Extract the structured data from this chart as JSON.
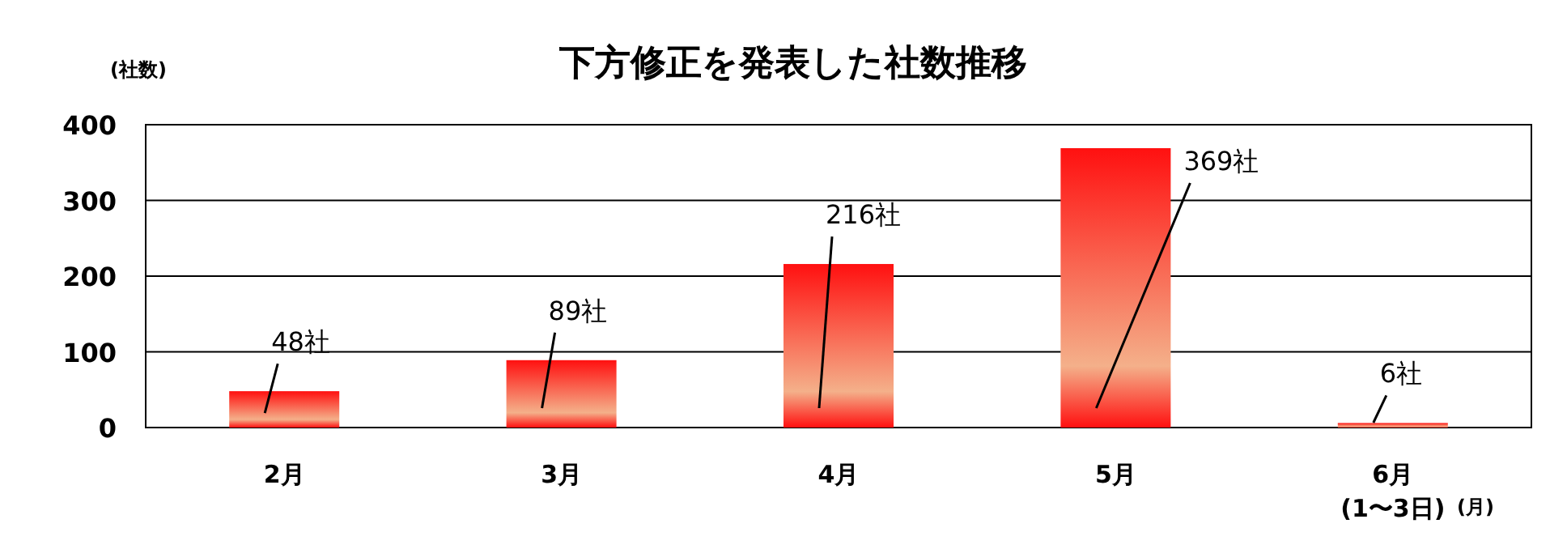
{
  "chart_data": {
    "type": "bar",
    "title": "下方修正を発表した社数推移",
    "ylabel": "(社数)",
    "xlabel": "(月)",
    "categories": [
      "2月",
      "3月",
      "4月",
      "5月",
      "6月\n(1〜3日)"
    ],
    "values": [
      48,
      89,
      216,
      369,
      6
    ],
    "value_labels": [
      "48社",
      "89社",
      "216社",
      "369社",
      "6社"
    ],
    "color": "#ff1010",
    "ylim": [
      0,
      400
    ],
    "yticks": [
      0,
      100,
      200,
      300,
      400
    ],
    "grid": "y"
  }
}
